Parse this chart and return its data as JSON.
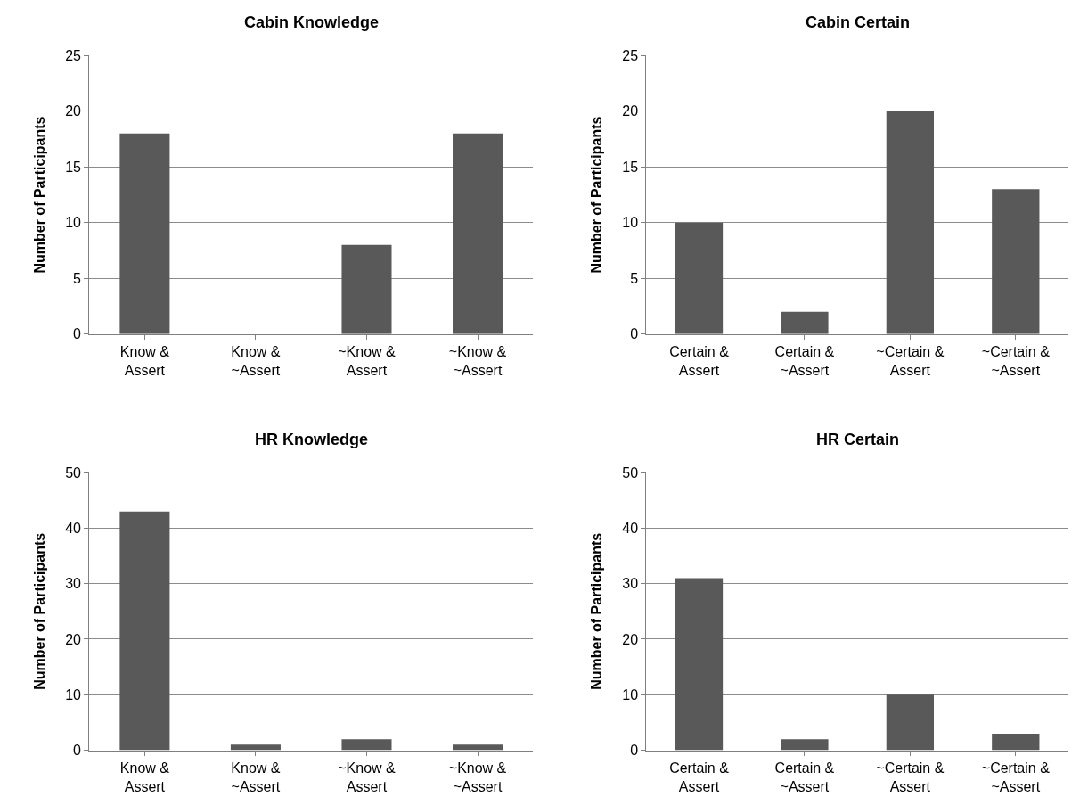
{
  "chart_data": [
    {
      "type": "bar",
      "title": "Cabin Knowledge",
      "ylabel": "Number of Participants",
      "categories": [
        "Know &\nAssert",
        "Know &\n~Assert",
        "~Know &\nAssert",
        "~Know &\n~Assert"
      ],
      "values": [
        18,
        0,
        8,
        18
      ],
      "color": "#595959",
      "ylim": [
        0,
        25
      ],
      "yticks": [
        0,
        5,
        10,
        15,
        20,
        25
      ],
      "grid": "y"
    },
    {
      "type": "bar",
      "title": "Cabin Certain",
      "ylabel": "Number of Participants",
      "categories": [
        "Certain &\nAssert",
        "Certain &\n~Assert",
        "~Certain &\nAssert",
        "~Certain &\n~Assert"
      ],
      "values": [
        10,
        2,
        20,
        13
      ],
      "color": "#595959",
      "ylim": [
        0,
        25
      ],
      "yticks": [
        0,
        5,
        10,
        15,
        20,
        25
      ],
      "grid": "y"
    },
    {
      "type": "bar",
      "title": "HR Knowledge",
      "ylabel": "Number of Participants",
      "categories": [
        "Know &\nAssert",
        "Know &\n~Assert",
        "~Know &\nAssert",
        "~Know &\n~Assert"
      ],
      "values": [
        43,
        1,
        2,
        1
      ],
      "color": "#595959",
      "ylim": [
        0,
        50
      ],
      "yticks": [
        0,
        10,
        20,
        30,
        40,
        50
      ],
      "grid": "y"
    },
    {
      "type": "bar",
      "title": "HR Certain",
      "ylabel": "Number of Participants",
      "categories": [
        "Certain &\nAssert",
        "Certain &\n~Assert",
        "~Certain &\nAssert",
        "~Certain &\n~Assert"
      ],
      "values": [
        31,
        2,
        10,
        3
      ],
      "color": "#595959",
      "ylim": [
        0,
        50
      ],
      "yticks": [
        0,
        10,
        20,
        30,
        40,
        50
      ],
      "grid": "y"
    }
  ]
}
